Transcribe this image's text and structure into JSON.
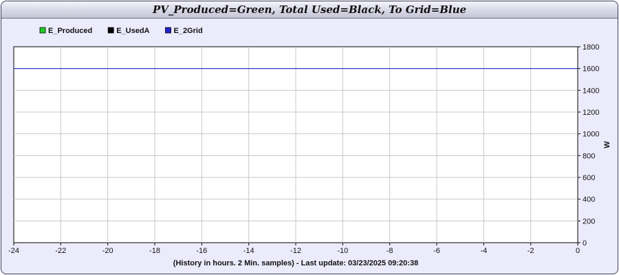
{
  "chart_data": {
    "type": "line",
    "title": "PV_Produced=Green, Total Used=Black, To Grid=Blue",
    "xlabel": "(History in hours. 2 Min. samples) - Last update: 03/23/2025 09:20:38",
    "ylabel": "W",
    "xlim": [
      -24,
      0
    ],
    "ylim": [
      0,
      1800
    ],
    "x_ticks": [
      -24,
      -22,
      -20,
      -18,
      -16,
      -14,
      -12,
      -10,
      -8,
      -6,
      -4,
      -2,
      0
    ],
    "y_ticks": [
      0,
      200,
      400,
      600,
      800,
      1000,
      1200,
      1400,
      1600,
      1800
    ],
    "grid": true,
    "legend_position": "top-left",
    "series": [
      {
        "name": "E_Produced",
        "color": "#22cc22",
        "x": [],
        "y": []
      },
      {
        "name": "E_UsedA",
        "color": "#000000",
        "x": [],
        "y": []
      },
      {
        "name": "E_2Grid",
        "color": "#2222cc",
        "x": [
          -24,
          0
        ],
        "y": [
          1600,
          1600
        ]
      }
    ]
  }
}
